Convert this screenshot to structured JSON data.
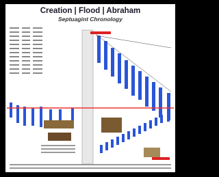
{
  "header": {
    "title": "Creation | Flood | Abraham",
    "subtitle": "Septuagint Chronology"
  }
}
